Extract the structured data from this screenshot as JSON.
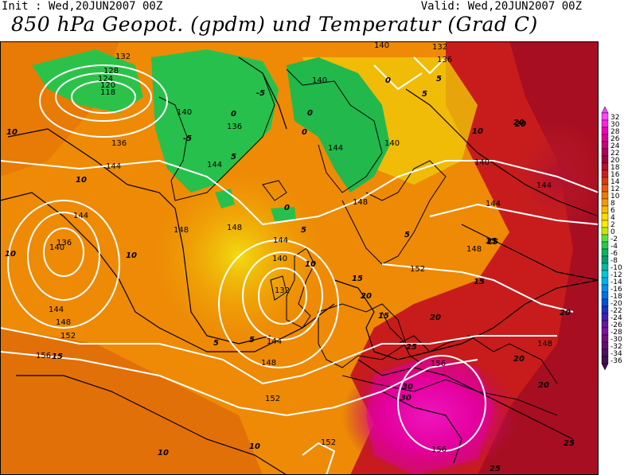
{
  "header": {
    "init": "Init : Wed,20JUN2007 00Z",
    "valid": "Valid: Wed,20JUN2007 00Z",
    "title": "850 hPa Geopot. (gpdm) und Temperatur (Grad C)"
  },
  "colorbar": {
    "labels": [
      "32",
      "30",
      "28",
      "26",
      "24",
      "22",
      "20",
      "18",
      "16",
      "14",
      "12",
      "10",
      "8",
      "6",
      "4",
      "2",
      "0",
      "-2",
      "-4",
      "-6",
      "-8",
      "-10",
      "-12",
      "-14",
      "-16",
      "-18",
      "-20",
      "-22",
      "-24",
      "-26",
      "-28",
      "-30",
      "-32",
      "-34",
      "-36"
    ],
    "colors": [
      "#ff44ff",
      "#ff22dd",
      "#ee00bb",
      "#dd0099",
      "#c8007a",
      "#b0005e",
      "#a00040",
      "#b8102a",
      "#cc2020",
      "#dd3a10",
      "#e85a08",
      "#f07a00",
      "#f59a00",
      "#f8bc00",
      "#fadd00",
      "#f4ee00",
      "#c8e800",
      "#5ce040",
      "#28c850",
      "#10b060",
      "#00a070",
      "#00b8a8",
      "#00c8d8",
      "#00b0f0",
      "#0090f0",
      "#0070e8",
      "#0050d8",
      "#2030c0",
      "#4020b0",
      "#6018a8",
      "#8010a0",
      "#701080",
      "#601070",
      "#501060",
      "#401050"
    ]
  },
  "map": {
    "geopotential_labels": [
      "132",
      "128",
      "124",
      "120",
      "118",
      "136",
      "140",
      "144",
      "148",
      "152",
      "156",
      "140",
      "144",
      "148",
      "136",
      "132",
      "140",
      "144",
      "144",
      "144",
      "144",
      "148",
      "152",
      "148",
      "144",
      "148",
      "152",
      "156",
      "152",
      "156",
      "136",
      "140",
      "148",
      "144",
      "148",
      "140",
      "144",
      "140",
      "132",
      "136",
      "140"
    ],
    "temperature_labels": [
      "10",
      "10",
      "10",
      "15",
      "10",
      "10",
      "5",
      "5",
      "0",
      "-5",
      "0",
      "-5",
      "0",
      "5",
      "10",
      "15",
      "15",
      "20",
      "20",
      "25",
      "30",
      "30",
      "25",
      "20",
      "20",
      "15",
      "15",
      "20",
      "20",
      "25",
      "10",
      "5",
      "5",
      "0",
      "0",
      "5",
      "5",
      "10",
      "20",
      "15"
    ]
  }
}
